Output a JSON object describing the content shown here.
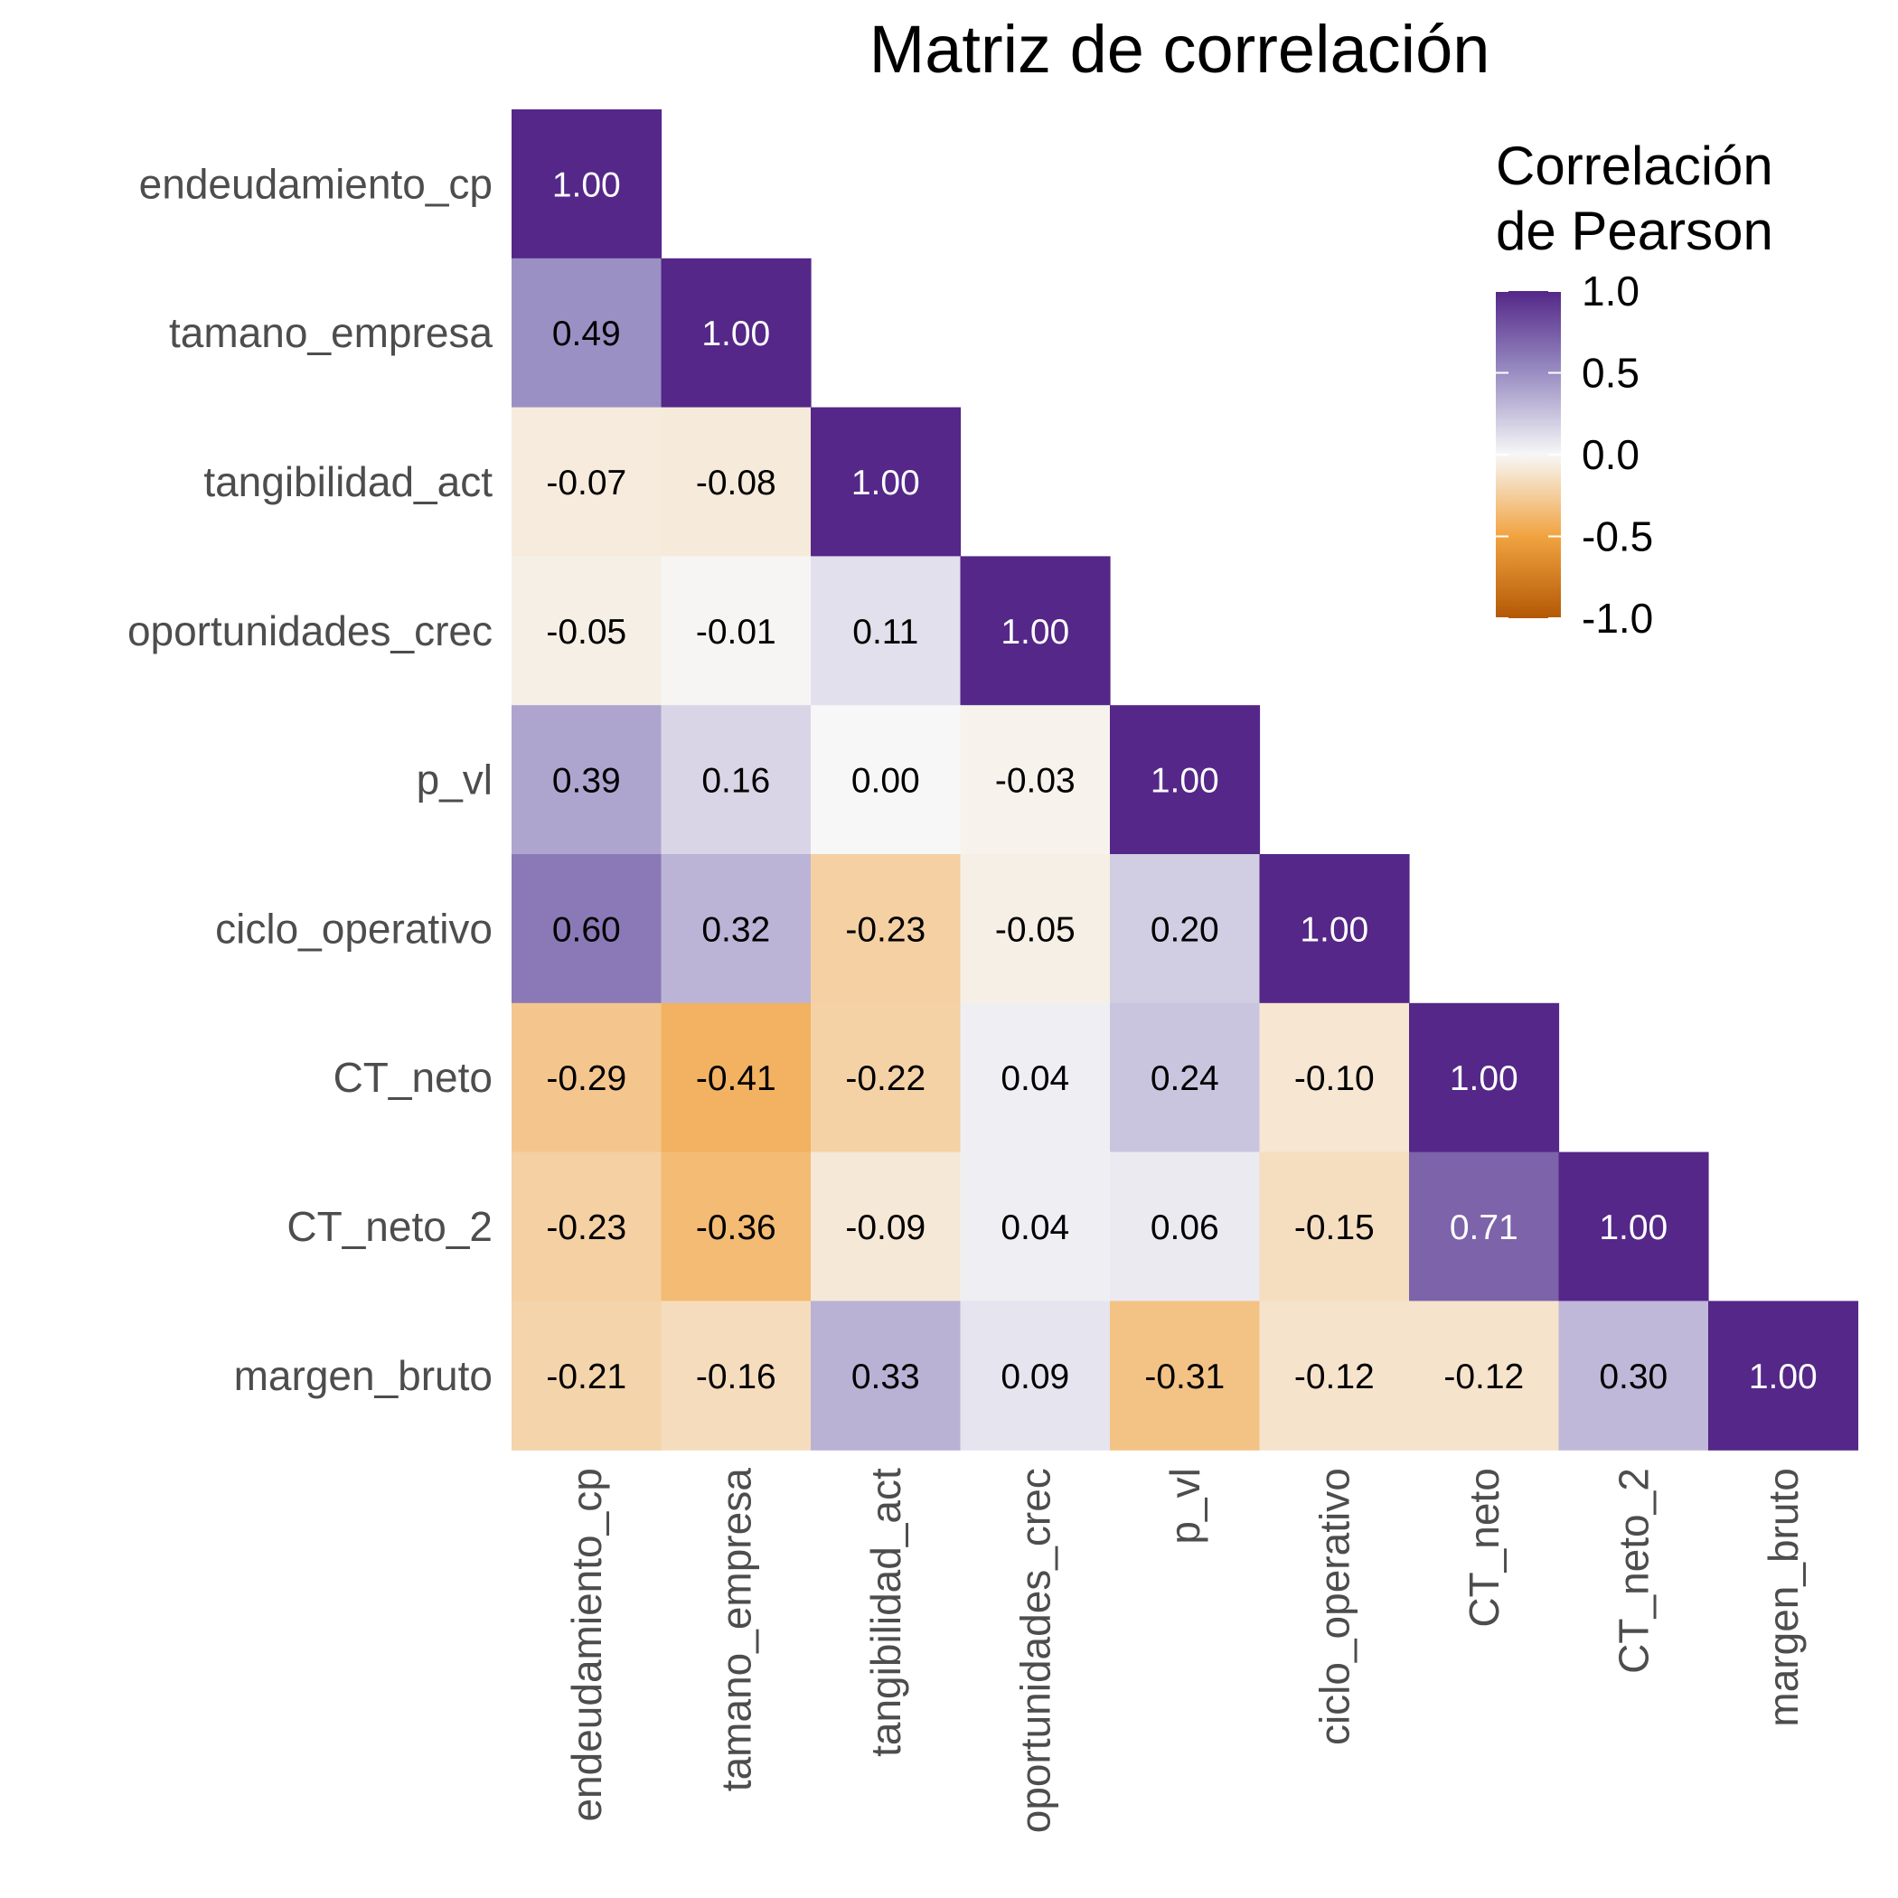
{
  "chart_data": {
    "type": "heatmap",
    "title": "Matriz de correlación",
    "variables": [
      "endeudamiento_cp",
      "tamano_empresa",
      "tangibilidad_act",
      "oportunidades_crec",
      "p_vl",
      "ciclo_operativo",
      "CT_neto",
      "CT_neto_2",
      "margen_bruto"
    ],
    "matrix": [
      [
        1.0,
        null,
        null,
        null,
        null,
        null,
        null,
        null,
        null
      ],
      [
        0.49,
        1.0,
        null,
        null,
        null,
        null,
        null,
        null,
        null
      ],
      [
        -0.07,
        -0.08,
        1.0,
        null,
        null,
        null,
        null,
        null,
        null
      ],
      [
        -0.05,
        -0.01,
        0.11,
        1.0,
        null,
        null,
        null,
        null,
        null
      ],
      [
        0.39,
        0.16,
        0.0,
        -0.03,
        1.0,
        null,
        null,
        null,
        null
      ],
      [
        0.6,
        0.32,
        -0.23,
        -0.05,
        0.2,
        1.0,
        null,
        null,
        null
      ],
      [
        -0.29,
        -0.41,
        -0.22,
        0.04,
        0.24,
        -0.1,
        1.0,
        null,
        null
      ],
      [
        -0.23,
        -0.36,
        -0.09,
        0.04,
        0.06,
        -0.15,
        0.71,
        1.0,
        null
      ],
      [
        -0.21,
        -0.16,
        0.33,
        0.09,
        -0.31,
        -0.12,
        -0.12,
        0.3,
        1.0
      ]
    ],
    "color_scale": {
      "min": -1.0,
      "max": 1.0,
      "low": "#b35806",
      "mid": "#f7f7f7",
      "high": "#542788"
    },
    "legend": {
      "title_lines": [
        "Correlación",
        "de Pearson"
      ],
      "ticks": [
        1.0,
        0.5,
        0.0,
        -0.5,
        -1.0
      ],
      "tick_labels": [
        "1.0",
        "0.5",
        "0.0",
        "-0.5",
        "-1.0"
      ],
      "position": "top-right"
    },
    "grid": false
  }
}
